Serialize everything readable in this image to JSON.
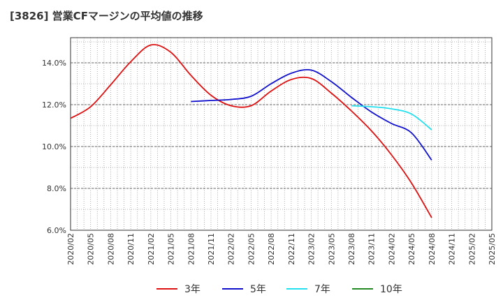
{
  "chart_data": {
    "type": "line",
    "title": "[3826]  営業CFマージンの平均値の推移",
    "xlabel": "",
    "ylabel": "",
    "x": [
      "2020/02",
      "2020/05",
      "2020/08",
      "2020/11",
      "2021/02",
      "2021/05",
      "2021/08",
      "2021/11",
      "2022/02",
      "2022/05",
      "2022/08",
      "2022/11",
      "2023/02",
      "2023/05",
      "2023/08",
      "2023/11",
      "2024/02",
      "2024/05",
      "2024/08",
      "2024/11",
      "2025/02",
      "2025/05"
    ],
    "ylim": [
      6.0,
      15.2
    ],
    "yticks": [
      6.0,
      8.0,
      10.0,
      12.0,
      14.0
    ],
    "ytick_format": "%.1f%",
    "grid": true,
    "legend_position": "bottom",
    "series": [
      {
        "name": "3年",
        "color": "#dd1111",
        "values": [
          11.35,
          11.9,
          12.95,
          14.05,
          14.85,
          14.5,
          13.4,
          12.45,
          11.95,
          11.95,
          12.65,
          13.2,
          13.25,
          12.55,
          11.7,
          10.75,
          9.6,
          8.25,
          6.6,
          null,
          null,
          null
        ]
      },
      {
        "name": "5年",
        "color": "#1010cc",
        "values": [
          null,
          null,
          null,
          null,
          null,
          null,
          12.15,
          12.2,
          12.25,
          12.4,
          13.0,
          13.5,
          13.65,
          13.1,
          12.35,
          11.65,
          11.1,
          10.65,
          9.35,
          null,
          null,
          null
        ]
      },
      {
        "name": "7年",
        "color": "#22e0ee",
        "values": [
          null,
          null,
          null,
          null,
          null,
          null,
          null,
          null,
          null,
          null,
          null,
          null,
          null,
          null,
          11.95,
          11.9,
          11.8,
          11.55,
          10.8,
          null,
          null,
          null
        ]
      },
      {
        "name": "10年",
        "color": "#228822",
        "values": [
          null,
          null,
          null,
          null,
          null,
          null,
          null,
          null,
          null,
          null,
          null,
          null,
          null,
          null,
          null,
          null,
          null,
          null,
          null,
          null,
          null,
          null
        ]
      }
    ]
  }
}
